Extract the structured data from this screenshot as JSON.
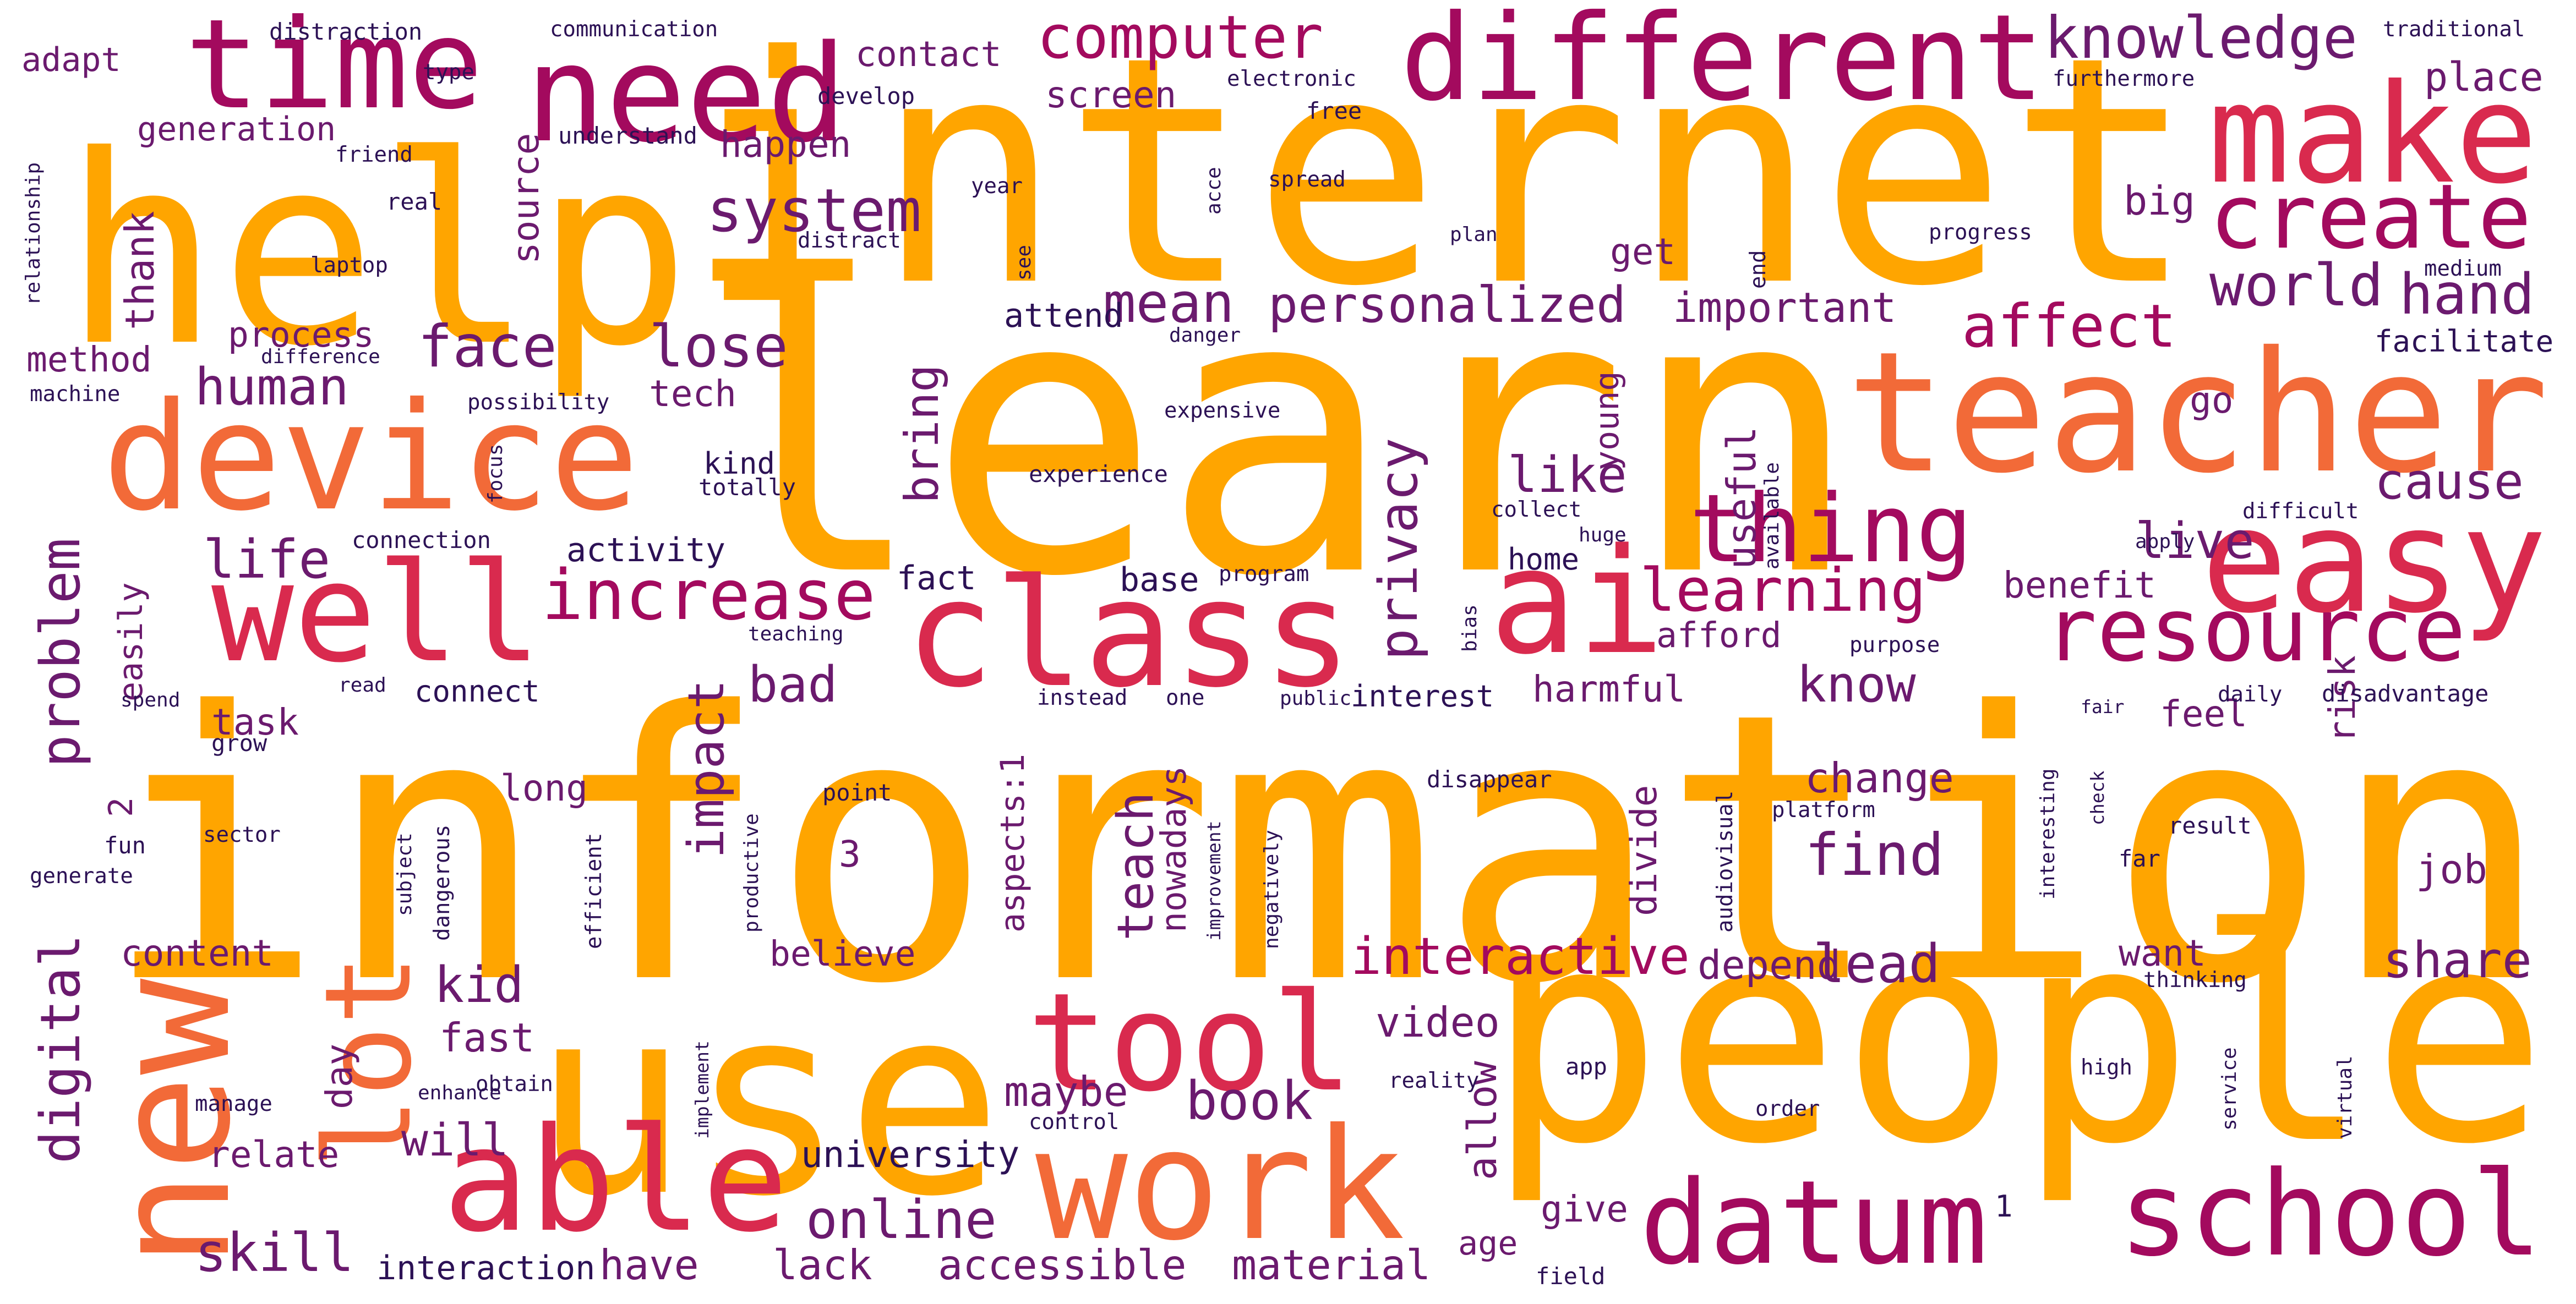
{
  "words": [
    "information",
    "learn",
    "help",
    "internet",
    "use",
    "people",
    "tool",
    "new",
    "lot",
    "device",
    "well",
    "class",
    "ai",
    "easy",
    "teacher",
    "make",
    "different",
    "need",
    "time",
    "create",
    "work",
    "able",
    "datum",
    "school",
    "resource",
    "thing",
    "learning",
    "increase",
    "privacy",
    "bring",
    "interactive",
    "computer",
    "knowledge",
    "system",
    "world",
    "hand",
    "affect",
    "face",
    "lose",
    "mean",
    "personalized",
    "important",
    "human",
    "life",
    "problem",
    "digital",
    "find",
    "teach",
    "impact",
    "bad",
    "know",
    "change",
    "book",
    "online",
    "skill",
    "lead",
    "share",
    "cause",
    "live",
    "like",
    "kid",
    "will",
    "have",
    "lack",
    "accessible",
    "material",
    "interaction",
    "university",
    "maybe",
    "relate",
    "fast",
    "day",
    "content",
    "believe",
    "depend",
    "want",
    "video",
    "allow",
    "give",
    "age",
    "field",
    "divide",
    "job",
    "risk",
    "feel",
    "benefit",
    "harmful",
    "interest",
    "afford",
    "home",
    "useful",
    "young",
    "go",
    "facilitate",
    "place",
    "big",
    "get",
    "source",
    "thank",
    "generation",
    "adapt",
    "contact",
    "screen",
    "happen",
    "process",
    "method",
    "tech",
    "task",
    "easily",
    "connect",
    "activity",
    "fact",
    "base",
    "long",
    "nowadays",
    "aspects:1",
    "3",
    "2",
    "1",
    "kind",
    "totally",
    "attend",
    "free",
    "develop",
    "understand",
    "spread",
    "year",
    "electronic",
    "type",
    "communication",
    "distraction",
    "friend",
    "real",
    "laptop",
    "difference",
    "machine",
    "possibility",
    "relationship",
    "distract",
    "see",
    "acce",
    "plan",
    "end",
    "progress",
    "furthermore",
    "traditional",
    "medium",
    "danger",
    "expensive",
    "experience",
    "focus",
    "connection",
    "program",
    "collect",
    "huge",
    "available",
    "apply",
    "difficult",
    "bias",
    "teaching",
    "purpose",
    "read",
    "spend",
    "grow",
    "instead",
    "one",
    "public",
    "daily",
    "disadvantage",
    "fair",
    "disappear",
    "audiovisual",
    "interesting",
    "check",
    "platform",
    "result",
    "far",
    "point",
    "sector",
    "fun",
    "generate",
    "subject",
    "dangerous",
    "productive",
    "efficient",
    "improvement",
    "negatively",
    "thinking",
    "service",
    "virtual",
    "high",
    "order",
    "reality",
    "app",
    "control",
    "implement",
    "obtain",
    "enhance",
    "manage"
  ]
}
